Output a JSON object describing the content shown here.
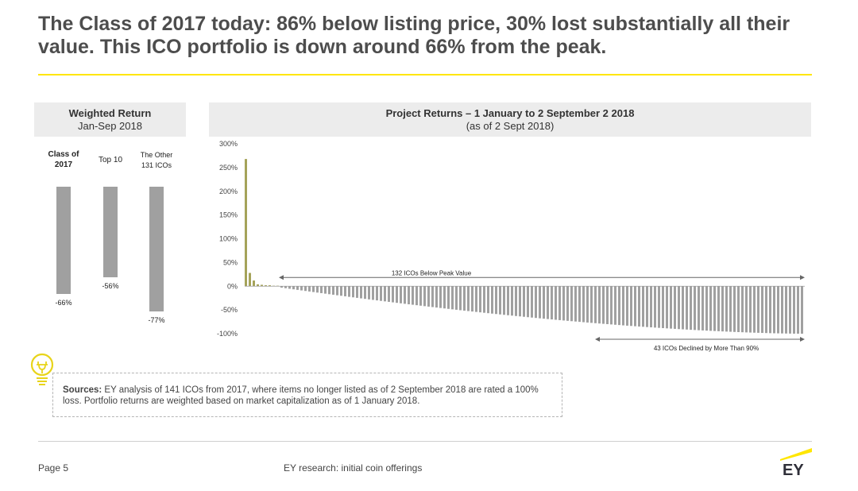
{
  "title": "The Class of 2017 today: 86% below listing price, 30% lost substantially all their value. This ICO portfolio is down around 66% from the peak.",
  "left_panel": {
    "heading": "Weighted Return",
    "subheading": "Jan-Sep 2018"
  },
  "right_panel": {
    "heading": "Project Returns – 1 January to 2 September 2 2018",
    "subheading": "(as of 2 Sept 2018)",
    "annotation_top": "132 ICOs Below Peak Value",
    "annotation_bottom": "43 ICOs Declined by More Than 90%"
  },
  "chart_data": [
    {
      "type": "bar",
      "title": "Weighted Return",
      "subtitle": "Jan-Sep 2018",
      "categories": [
        "Class of 2017",
        "Top 10",
        "The Other 131 ICOs"
      ],
      "values": [
        -66,
        -56,
        -77
      ],
      "value_labels": [
        "-66%",
        "-56%",
        "-77%"
      ],
      "color": "#a0a0a0"
    },
    {
      "type": "bar",
      "title": "Project Returns – 1 January to 2 September 2 2018",
      "subtitle": "(as of 2 Sept 2018)",
      "ylim": [
        -100,
        300
      ],
      "yticks": [
        "300%",
        "250%",
        "200%",
        "150%",
        "100%",
        "50%",
        "0%",
        "-50%",
        "-100%"
      ],
      "positive_color": "#a5a35a",
      "negative_color": "#a0a0a0",
      "head_values": [
        268,
        28,
        12,
        4,
        3,
        2,
        2,
        1,
        1
      ],
      "tail_start": -3,
      "tail_end": -100,
      "tail_count": 132,
      "annotations": [
        "132 ICOs Below Peak Value",
        "43 ICOs Declined by More Than 90%"
      ]
    }
  ],
  "sources": {
    "label": "Sources:",
    "text": " EY analysis of 141 ICOs from 2017, where items no longer listed as of 2 September 2018 are rated a 100% loss.  Portfolio returns are weighted based on market capitalization as of 1 January 2018."
  },
  "footer": {
    "page": "Page 5",
    "center": "EY research: initial coin offerings",
    "logo": "EY"
  },
  "icons": {
    "bulb": "lightbulb-icon"
  }
}
